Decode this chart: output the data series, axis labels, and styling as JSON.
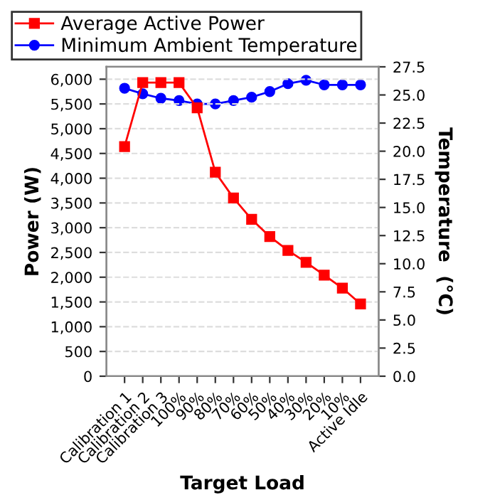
{
  "chart_data": {
    "type": "line",
    "xlabel": "Target Load",
    "ylabel": "Power (W)",
    "y2label": "Temperature  (°C)",
    "categories": [
      "Calibration 1",
      "Calibration 2",
      "Calibration 3",
      "100%",
      "90%",
      "80%",
      "70%",
      "60%",
      "50%",
      "40%",
      "30%",
      "20%",
      "10%",
      "Active Idle"
    ],
    "series": [
      {
        "name": "Average Active Power",
        "color": "#ff0000",
        "marker": "square",
        "values": [
          4640,
          5930,
          5930,
          5930,
          5420,
          4120,
          3600,
          3170,
          2820,
          2540,
          2300,
          2040,
          1780,
          1460
        ]
      },
      {
        "name": "Minimum Ambient Temperature",
        "color": "#0000ff",
        "marker": "circle",
        "axis": "y2",
        "values": [
          25.6,
          25.1,
          24.7,
          24.5,
          24.2,
          24.2,
          24.5,
          24.8,
          25.3,
          26.0,
          26.3,
          25.9,
          25.9,
          25.9
        ]
      }
    ],
    "ylim": [
      0,
      6250
    ],
    "yticks": [
      {
        "value": 0,
        "label": "0"
      },
      {
        "value": 500,
        "label": "500"
      },
      {
        "value": 1000,
        "label": "1,000"
      },
      {
        "value": 1500,
        "label": "1,500"
      },
      {
        "value": 2000,
        "label": "2,000"
      },
      {
        "value": 2500,
        "label": "2,500"
      },
      {
        "value": 3000,
        "label": "3,000"
      },
      {
        "value": 3500,
        "label": "3,500"
      },
      {
        "value": 4000,
        "label": "4,000"
      },
      {
        "value": 4500,
        "label": "4,500"
      },
      {
        "value": 5000,
        "label": "5,000"
      },
      {
        "value": 5500,
        "label": "5,500"
      },
      {
        "value": 6000,
        "label": "6,000"
      }
    ],
    "y2lim": [
      0,
      27.5
    ],
    "y2ticks": [
      {
        "value": 0,
        "label": "0.0"
      },
      {
        "value": 2.5,
        "label": "2.5"
      },
      {
        "value": 5,
        "label": "5.0"
      },
      {
        "value": 7.5,
        "label": "7.5"
      },
      {
        "value": 10,
        "label": "10.0"
      },
      {
        "value": 12.5,
        "label": "12.5"
      },
      {
        "value": 15,
        "label": "15.0"
      },
      {
        "value": 17.5,
        "label": "17.5"
      },
      {
        "value": 20,
        "label": "20.0"
      },
      {
        "value": 22.5,
        "label": "22.5"
      },
      {
        "value": 25,
        "label": "25.0"
      },
      {
        "value": 27.5,
        "label": "27.5"
      }
    ],
    "grid": "y",
    "legend": "top",
    "line_style": "solid"
  }
}
